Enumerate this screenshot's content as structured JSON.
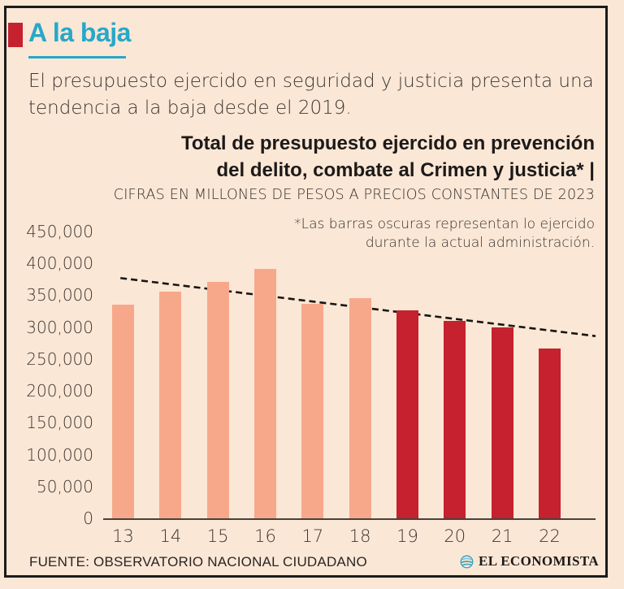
{
  "header": {
    "title": "A la baja",
    "description_line1": "El presupuesto ejercido en seguridad y justicia presenta una",
    "description_line2": "tendencia a la baja desde el 2019."
  },
  "chart_header": {
    "title_line1": "Total de presupuesto ejercido en prevención",
    "title_line2": "del delito, combate al Crimen y justicia* |",
    "subtitle": "CIFRAS EN MILLONES DE PESOS A PRECIOS CONSTANTES DE 2023",
    "note_line1": "*Las barras oscuras representan lo ejercido",
    "note_line2": "durante la actual administración."
  },
  "chart_data": {
    "type": "bar",
    "title": "Total de presupuesto ejercido en prevención del delito, combate al Crimen y justicia",
    "units": "millones de pesos a precios constantes de 2023",
    "categories": [
      "13",
      "14",
      "15",
      "16",
      "17",
      "18",
      "19",
      "20",
      "21",
      "22"
    ],
    "values": [
      335000,
      356000,
      371000,
      391000,
      336000,
      345000,
      327000,
      310000,
      300000,
      266000
    ],
    "dark_from_index": 6,
    "colors": {
      "light": "#f7a88b",
      "dark": "#c5212e",
      "trend": "#181512"
    },
    "ylim": [
      0,
      450000
    ],
    "ytick_step": 50000,
    "yticks": [
      "450,000",
      "400,000",
      "350,000",
      "300,000",
      "250,000",
      "200,000",
      "150,000",
      "100,000",
      "50,000",
      "0"
    ],
    "grid": false,
    "legend": "none",
    "trendline": {
      "x1_frac": 0.035,
      "v1": 377000,
      "x2_frac": 1.0,
      "v2": 286000,
      "style": "dashed"
    }
  },
  "footer": {
    "source": "FUENTE: OBSERVATORIO NACIONAL CIUDADANO",
    "brand": "EL ECONOMISTA"
  },
  "colors": {
    "background": "#fbe7d5",
    "accent_cyan": "#27a8c8",
    "accent_red": "#c5212e",
    "frame": "#1c1b1a"
  }
}
